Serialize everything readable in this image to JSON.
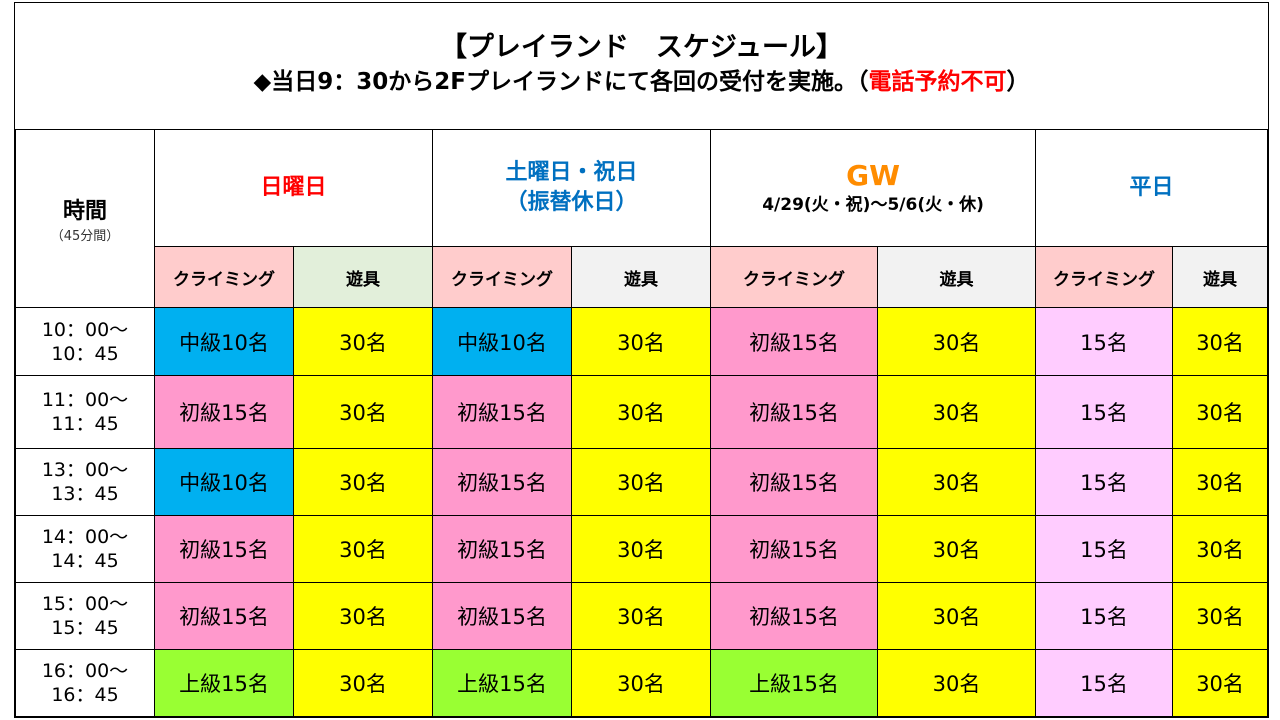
{
  "header": {
    "title": "【プレイランド　スケジュール】",
    "subtitle_main": "◆当日9：30から2Fプレイランドにて各回の受付を実施。（",
    "subtitle_warn": "電話予約不可",
    "subtitle_end": "）"
  },
  "columns": {
    "time_label": "時間",
    "time_sub": "（45分間）",
    "sunday": "日曜日",
    "saturday_line1": "土曜日・祝日",
    "saturday_line2": "（振替休日）",
    "gw_title": "GW",
    "gw_range": "4/29(火・祝)～5/6(火・休)",
    "weekday": "平日",
    "climbing": "クライミング",
    "toys": "遊具"
  },
  "rows": [
    {
      "time1": "10：00～",
      "time2": "10：45",
      "cells": [
        "中級10名",
        "30名",
        "中級10名",
        "30名",
        "初級15名",
        "30名",
        "15名",
        "30名"
      ]
    },
    {
      "time1": "11：00～",
      "time2": "11：45",
      "cells": [
        "初級15名",
        "30名",
        "初級15名",
        "30名",
        "初級15名",
        "30名",
        "15名",
        "30名"
      ]
    },
    {
      "time1": "13：00～",
      "time2": "13：45",
      "cells": [
        "中級10名",
        "30名",
        "初級15名",
        "30名",
        "初級15名",
        "30名",
        "15名",
        "30名"
      ]
    },
    {
      "time1": "14：00～",
      "time2": "14：45",
      "cells": [
        "初級15名",
        "30名",
        "初級15名",
        "30名",
        "初級15名",
        "30名",
        "15名",
        "30名"
      ]
    },
    {
      "time1": "15：00～",
      "time2": "15：45",
      "cells": [
        "初級15名",
        "30名",
        "初級15名",
        "30名",
        "初級15名",
        "30名",
        "15名",
        "30名"
      ]
    },
    {
      "time1": "16：00～",
      "time2": "16：45",
      "cells": [
        "上級15名",
        "30名",
        "上級15名",
        "30名",
        "上級15名",
        "30名",
        "15名",
        "30名"
      ]
    }
  ],
  "colors": {
    "intermediate": "#00b0f0",
    "beginner": "#ff99cc",
    "advanced": "#99ff33",
    "toys": "#ffff00",
    "weekday_climbing": "#ffccff",
    "warning_text": "#ff0000",
    "saturday_text": "#0070c0",
    "gw_text": "#ff8c00"
  }
}
